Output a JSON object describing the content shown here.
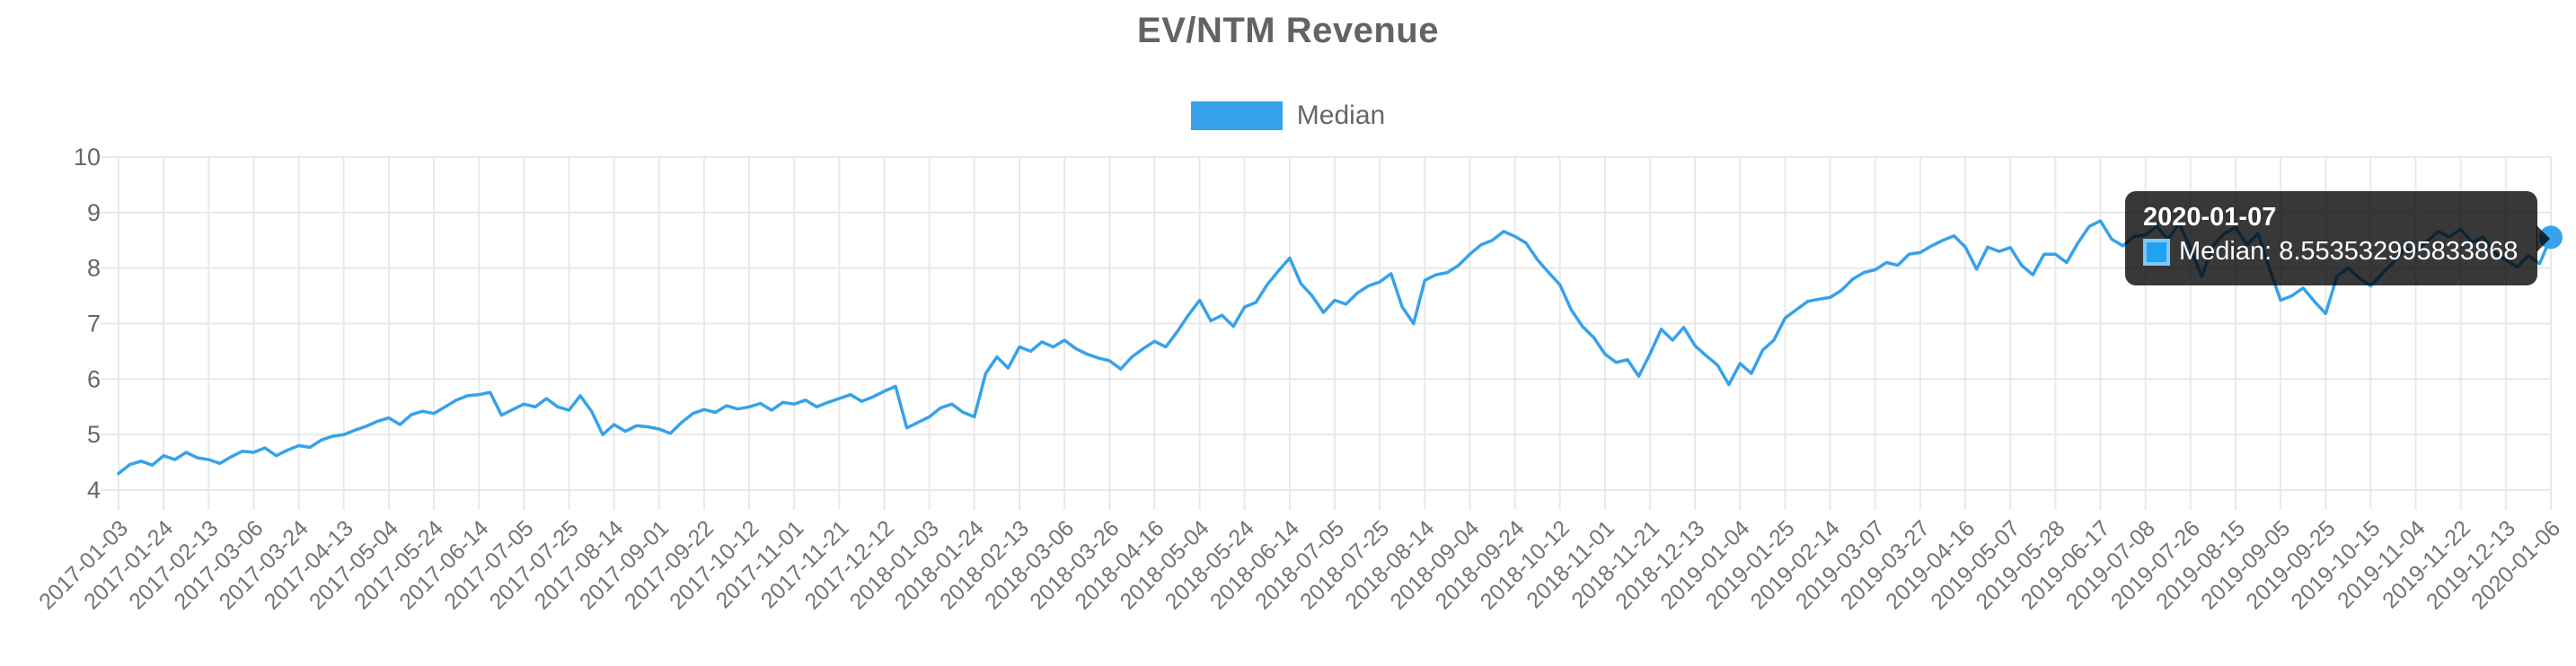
{
  "chart_title": "EV/NTM Revenue",
  "legend": {
    "label": "Median",
    "swatch_color": "#36A2EB"
  },
  "tooltip": {
    "title": "2020-01-07",
    "text": "Median: 8.553532995833868",
    "box_fill": "#1EA2F1",
    "box_border": "#7EC8F7"
  },
  "colors": {
    "line": "#36A2EB",
    "grid": "#e9e9e9",
    "axis_text": "#737373",
    "y_axis_text": "#666666",
    "marker": "#36A2EB"
  },
  "chart_data": {
    "type": "line",
    "title": "EV/NTM Revenue",
    "series_name": "Median",
    "legend_position": "top",
    "grid": true,
    "xlabel": "",
    "ylabel": "",
    "ylim": [
      4,
      10
    ],
    "yticks": [
      4,
      5,
      6,
      7,
      8,
      9,
      10
    ],
    "points_per_category_interval": 4,
    "categories": [
      "2017-01-03",
      "2017-01-24",
      "2017-02-13",
      "2017-03-06",
      "2017-03-24",
      "2017-04-13",
      "2017-05-04",
      "2017-05-24",
      "2017-06-14",
      "2017-07-05",
      "2017-07-25",
      "2017-08-14",
      "2017-09-01",
      "2017-09-22",
      "2017-10-12",
      "2017-11-01",
      "2017-11-21",
      "2017-12-12",
      "2018-01-03",
      "2018-01-24",
      "2018-02-13",
      "2018-03-06",
      "2018-03-26",
      "2018-04-16",
      "2018-05-04",
      "2018-05-24",
      "2018-06-14",
      "2018-07-05",
      "2018-07-25",
      "2018-08-14",
      "2018-09-04",
      "2018-09-24",
      "2018-10-12",
      "2018-11-01",
      "2018-11-21",
      "2018-12-13",
      "2019-01-04",
      "2019-01-25",
      "2019-02-14",
      "2019-03-07",
      "2019-03-27",
      "2019-04-16",
      "2019-05-07",
      "2019-05-28",
      "2019-06-17",
      "2019-07-08",
      "2019-07-26",
      "2019-08-15",
      "2019-09-05",
      "2019-09-25",
      "2019-10-15",
      "2019-11-04",
      "2019-11-22",
      "2019-12-13",
      "2020-01-06"
    ],
    "values": [
      4.3,
      4.46,
      4.52,
      4.45,
      4.62,
      4.55,
      4.68,
      4.58,
      4.55,
      4.48,
      4.6,
      4.7,
      4.68,
      4.76,
      4.62,
      4.72,
      4.8,
      4.77,
      4.9,
      4.97,
      5.0,
      5.08,
      5.15,
      5.24,
      5.3,
      5.18,
      5.36,
      5.42,
      5.38,
      5.5,
      5.62,
      5.7,
      5.72,
      5.76,
      5.35,
      5.45,
      5.55,
      5.5,
      5.65,
      5.5,
      5.44,
      5.7,
      5.42,
      5.0,
      5.18,
      5.06,
      5.16,
      5.14,
      5.1,
      5.02,
      5.22,
      5.38,
      5.45,
      5.4,
      5.52,
      5.46,
      5.5,
      5.56,
      5.44,
      5.58,
      5.55,
      5.62,
      5.5,
      5.58,
      5.65,
      5.72,
      5.6,
      5.68,
      5.78,
      5.87,
      5.12,
      5.22,
      5.32,
      5.48,
      5.55,
      5.4,
      5.32,
      6.1,
      6.4,
      6.2,
      6.58,
      6.5,
      6.67,
      6.58,
      6.7,
      6.55,
      6.45,
      6.38,
      6.33,
      6.18,
      6.4,
      6.55,
      6.68,
      6.58,
      6.85,
      7.15,
      7.42,
      7.05,
      7.15,
      6.95,
      7.3,
      7.38,
      7.7,
      7.95,
      8.18,
      7.72,
      7.5,
      7.2,
      7.42,
      7.35,
      7.55,
      7.68,
      7.75,
      7.9,
      7.3,
      7.0,
      7.78,
      7.88,
      7.92,
      8.05,
      8.25,
      8.42,
      8.5,
      8.66,
      8.57,
      8.45,
      8.15,
      7.92,
      7.7,
      7.25,
      6.95,
      6.75,
      6.45,
      6.3,
      6.35,
      6.05,
      6.45,
      6.9,
      6.7,
      6.93,
      6.6,
      6.42,
      6.25,
      5.9,
      6.28,
      6.1,
      6.52,
      6.7,
      7.1,
      7.25,
      7.4,
      7.44,
      7.47,
      7.6,
      7.8,
      7.92,
      7.97,
      8.1,
      8.05,
      8.25,
      8.28,
      8.4,
      8.5,
      8.58,
      8.38,
      7.98,
      8.38,
      8.3,
      8.37,
      8.05,
      7.88,
      8.25,
      8.25,
      8.1,
      8.45,
      8.75,
      8.85,
      8.52,
      8.4,
      8.57,
      8.6,
      8.75,
      8.52,
      8.8,
      8.35,
      7.85,
      8.4,
      8.62,
      8.73,
      8.42,
      8.62,
      8.0,
      7.42,
      7.5,
      7.64,
      7.4,
      7.18,
      7.85,
      8.0,
      7.82,
      7.68,
      7.9,
      8.1,
      8.35,
      8.3,
      8.48,
      8.66,
      8.56,
      8.7,
      8.46,
      8.56,
      8.28,
      8.15,
      8.02,
      8.22,
      8.08,
      8.553532995833868
    ],
    "highlight_point": {
      "date": "2020-01-07",
      "value": 8.553532995833868
    }
  }
}
